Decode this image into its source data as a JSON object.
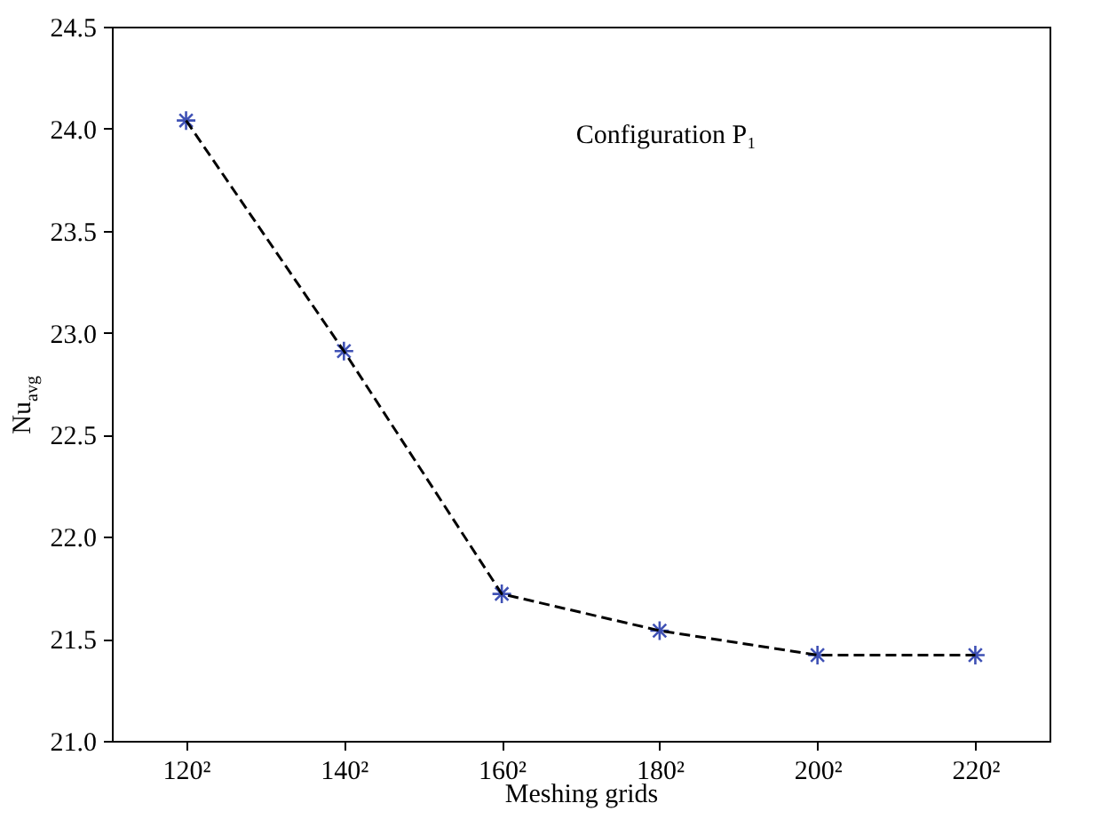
{
  "chart_data": {
    "type": "line",
    "xlabel": "Meshing grids",
    "ylabel": "Nu$_{avg}$",
    "categories": [
      "120²",
      "140²",
      "160²",
      "180²",
      "200²",
      "220²"
    ],
    "series": [
      {
        "color": "#000000",
        "line_style": "dashed",
        "marker": "none",
        "values": [
          24.04,
          22.91,
          21.72,
          21.54,
          21.42,
          21.42
        ]
      },
      {
        "type": "scatter",
        "color": "#3f51b5",
        "marker": "cross",
        "values": [
          24.04,
          22.91,
          21.72,
          21.54,
          21.42,
          21.42
        ]
      }
    ],
    "ylim": [
      21.0,
      24.5
    ],
    "yticks": [
      {
        "value": 21,
        "label": "21.0"
      },
      21.5,
      {
        "value": 22,
        "label": "22.0"
      },
      22.5,
      {
        "value": 23,
        "label": "23.0"
      },
      23.5,
      {
        "value": 24,
        "label": "24.0"
      },
      24.5
    ],
    "annotations": [
      "Configuration P₁"
    ],
    "grid": false
  }
}
